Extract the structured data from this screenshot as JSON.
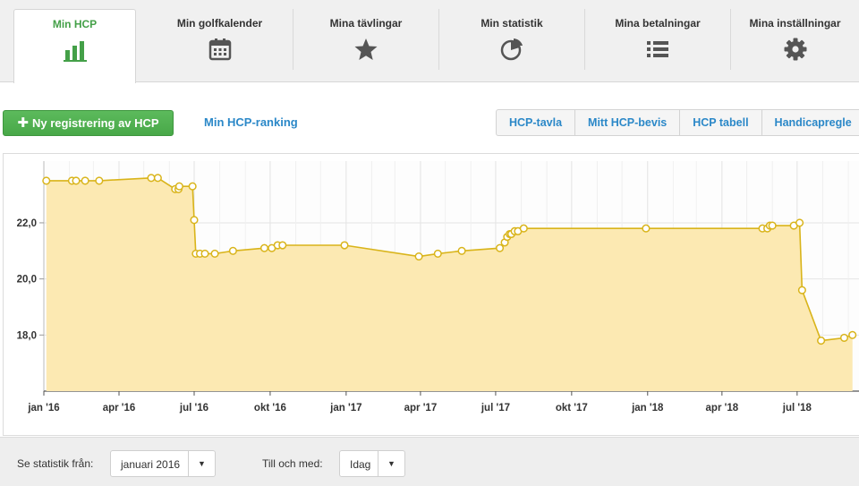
{
  "nav": {
    "tabs": [
      {
        "label": "Min HCP",
        "icon": "bar-chart-icon",
        "active": true
      },
      {
        "label": "Min golfkalender",
        "icon": "calendar-icon",
        "active": false
      },
      {
        "label": "Mina tävlingar",
        "icon": "star-icon",
        "active": false
      },
      {
        "label": "Min statistik",
        "icon": "pie-chart-icon",
        "active": false
      },
      {
        "label": "Mina betalningar",
        "icon": "list-icon",
        "active": false
      },
      {
        "label": "Mina inställningar",
        "icon": "gear-icon",
        "active": false
      }
    ]
  },
  "actions": {
    "new_registration": "Ny registrering av HCP",
    "ranking_link": "Min HCP-ranking",
    "subtabs": [
      "HCP-tavla",
      "Mitt HCP-bevis",
      "HCP tabell",
      "Handicapregle"
    ]
  },
  "filter": {
    "from_label": "Se statistik från:",
    "from_value": "januari 2016",
    "to_label": "Till och med:",
    "to_value": "Idag"
  },
  "colors": {
    "accent_green": "#44a048",
    "link_blue": "#2b88c8",
    "series_line": "#d9b41a",
    "series_fill": "#fce9b2"
  },
  "chart_data": {
    "type": "area",
    "title": "",
    "xlabel": "",
    "ylabel": "",
    "ylim": [
      16.0,
      24.2
    ],
    "yticks": [
      "18,0",
      "20,0",
      "22,0"
    ],
    "ytick_values": [
      18,
      20,
      22
    ],
    "xlim": [
      "2016-01-01",
      "2018-09-15"
    ],
    "xticks": [
      "jan '16",
      "apr '16",
      "jul '16",
      "okt '16",
      "jan '17",
      "apr '17",
      "jul '17",
      "okt '17",
      "jan '18",
      "apr '18",
      "jul '18"
    ],
    "xtick_dates": [
      "2016-01-01",
      "2016-04-01",
      "2016-07-01",
      "2016-10-01",
      "2017-01-01",
      "2017-04-01",
      "2017-07-01",
      "2017-10-01",
      "2018-01-01",
      "2018-04-01",
      "2018-07-01"
    ],
    "grid": true,
    "legend": "none",
    "series": [
      {
        "points": [
          [
            "2016-01-04",
            23.5
          ],
          [
            "2016-02-04",
            23.5
          ],
          [
            "2016-02-09",
            23.5
          ],
          [
            "2016-02-20",
            23.5
          ],
          [
            "2016-03-08",
            23.5
          ],
          [
            "2016-05-10",
            23.6
          ],
          [
            "2016-05-18",
            23.6
          ],
          [
            "2016-06-08",
            23.2
          ],
          [
            "2016-06-12",
            23.2
          ],
          [
            "2016-06-13",
            23.3
          ],
          [
            "2016-06-29",
            23.3
          ],
          [
            "2016-07-01",
            22.1
          ],
          [
            "2016-07-03",
            20.9
          ],
          [
            "2016-07-08",
            20.9
          ],
          [
            "2016-07-14",
            20.9
          ],
          [
            "2016-07-26",
            20.9
          ],
          [
            "2016-08-17",
            21.0
          ],
          [
            "2016-09-24",
            21.1
          ],
          [
            "2016-10-03",
            21.1
          ],
          [
            "2016-10-10",
            21.2
          ],
          [
            "2016-10-16",
            21.2
          ],
          [
            "2016-12-30",
            21.2
          ],
          [
            "2017-03-30",
            20.8
          ],
          [
            "2017-04-22",
            20.9
          ],
          [
            "2017-05-21",
            21.0
          ],
          [
            "2017-07-06",
            21.1
          ],
          [
            "2017-07-12",
            21.3
          ],
          [
            "2017-07-15",
            21.5
          ],
          [
            "2017-07-18",
            21.6
          ],
          [
            "2017-07-20",
            21.6
          ],
          [
            "2017-07-24",
            21.7
          ],
          [
            "2017-07-28",
            21.7
          ],
          [
            "2017-08-04",
            21.8
          ],
          [
            "2017-12-30",
            21.8
          ],
          [
            "2018-05-20",
            21.8
          ],
          [
            "2018-05-26",
            21.8
          ],
          [
            "2018-05-29",
            21.9
          ],
          [
            "2018-06-01",
            21.9
          ],
          [
            "2018-06-27",
            21.9
          ],
          [
            "2018-07-04",
            22.0
          ],
          [
            "2018-07-07",
            19.6
          ],
          [
            "2018-07-30",
            17.8
          ],
          [
            "2018-08-27",
            17.9
          ],
          [
            "2018-09-06",
            18.0
          ]
        ]
      }
    ]
  }
}
